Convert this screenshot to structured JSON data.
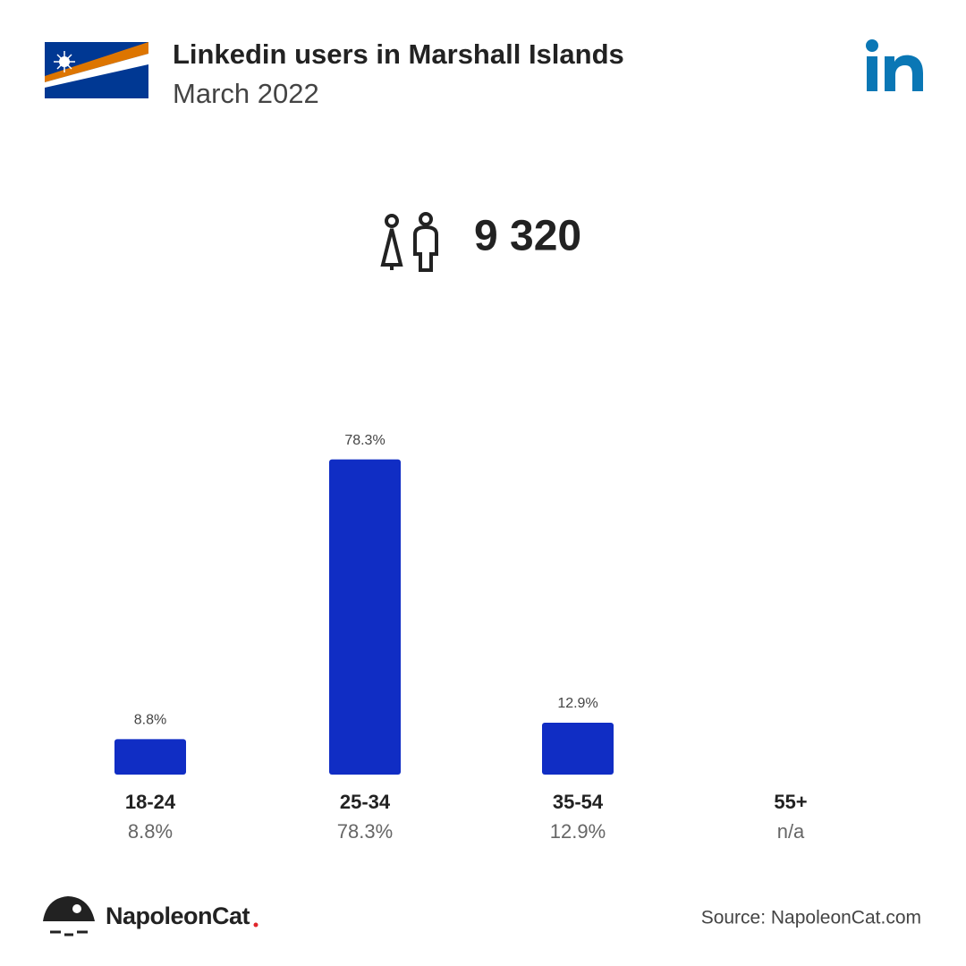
{
  "title": "Linkedin users in Marshall Islands",
  "subtitle": "March 2022",
  "total": "9 320",
  "brand": "NapoleonCat",
  "source": "Source: NapoleonCat.com",
  "chart_data": {
    "type": "bar",
    "categories": [
      "18-24",
      "25-34",
      "35-54",
      "55+"
    ],
    "values": [
      8.8,
      78.3,
      12.9,
      null
    ],
    "value_labels": [
      "8.8%",
      "78.3%",
      "12.9%",
      "n/a"
    ],
    "color": "#102dc4"
  }
}
